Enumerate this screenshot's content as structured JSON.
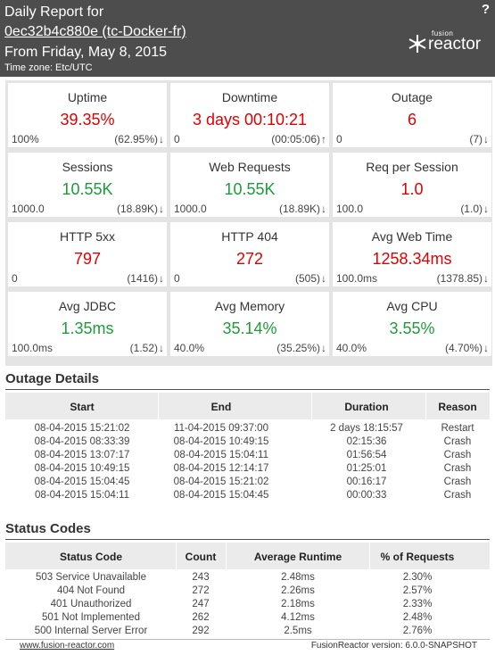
{
  "header": {
    "title_line1": "Daily Report for",
    "title_line2": "0ec32b4c880e (tc-Docker-fr)",
    "title_line3": "From Friday, May 8, 2015",
    "timezone": "Time zone: Etc/UTC",
    "help": "?",
    "logo_top": "fusion",
    "logo_bottom": "reactor"
  },
  "colors": {
    "header_bg": "#4d4d4d",
    "bad": "#e00000",
    "good": "#1e9b3a"
  },
  "cards": [
    {
      "label": "Uptime",
      "value": "39.35%",
      "left": "100%",
      "right": "(62.95%)",
      "arrow": "↓",
      "status": "bad"
    },
    {
      "label": "Downtime",
      "value": "3 days 00:10:21",
      "left": "0",
      "right": "(00:05:06)",
      "arrow": "↑",
      "status": "bad"
    },
    {
      "label": "Outage",
      "value": "6",
      "left": "0",
      "right": "(7)",
      "arrow": "↓",
      "status": "bad"
    },
    {
      "label": "Sessions",
      "value": "10.55K",
      "left": "1000.0",
      "right": "(18.89K)",
      "arrow": "↓",
      "status": "good"
    },
    {
      "label": "Web Requests",
      "value": "10.55K",
      "left": "1000.0",
      "right": "(18.89K)",
      "arrow": "↓",
      "status": "good"
    },
    {
      "label": "Req per Session",
      "value": "1.0",
      "left": "100.0",
      "right": "(1.0)",
      "arrow": "↓",
      "status": "bad"
    },
    {
      "label": "HTTP 5xx",
      "value": "797",
      "left": "0",
      "right": "(1416)",
      "arrow": "↓",
      "status": "bad"
    },
    {
      "label": "HTTP 404",
      "value": "272",
      "left": "0",
      "right": "(505)",
      "arrow": "↓",
      "status": "bad"
    },
    {
      "label": "Avg Web Time",
      "value": "1258.34ms",
      "left": "100.0ms",
      "right": "(1378.85)",
      "arrow": "↓",
      "status": "bad"
    },
    {
      "label": "Avg JDBC",
      "value": "1.35ms",
      "left": "100.0ms",
      "right": "(1.52)",
      "arrow": "↓",
      "status": "good"
    },
    {
      "label": "Avg Memory",
      "value": "35.14%",
      "left": "40.0%",
      "right": "(35.25%)",
      "arrow": "↓",
      "status": "good"
    },
    {
      "label": "Avg CPU",
      "value": "3.55%",
      "left": "40.0%",
      "right": "(4.70%)",
      "arrow": "↓",
      "status": "good"
    }
  ],
  "outage": {
    "title": "Outage Details",
    "headers": [
      "Start",
      "End",
      "Duration",
      "Reason"
    ],
    "rows": [
      [
        "08-04-2015 15:21:02",
        "11-04-2015 09:37:00",
        "2 days 18:15:57",
        "Restart"
      ],
      [
        "08-04-2015 08:33:39",
        "08-04-2015 10:49:15",
        "02:15:36",
        "Crash"
      ],
      [
        "08-04-2015 13:07:17",
        "08-04-2015 15:04:11",
        "01:56:54",
        "Crash"
      ],
      [
        "08-04-2015 10:49:15",
        "08-04-2015 12:14:17",
        "01:25:01",
        "Crash"
      ],
      [
        "08-04-2015 15:04:45",
        "08-04-2015 15:21:02",
        "00:16:17",
        "Crash"
      ],
      [
        "08-04-2015 15:04:11",
        "08-04-2015 15:04:45",
        "00:00:33",
        "Crash"
      ]
    ]
  },
  "status_codes": {
    "title": "Status Codes",
    "headers": [
      "Status Code",
      "Count",
      "Average Runtime",
      "% of Requests"
    ],
    "rows": [
      [
        "503 Service Unavailable",
        "243",
        "2.48ms",
        "2.30%"
      ],
      [
        "404 Not Found",
        "272",
        "2.26ms",
        "2.57%"
      ],
      [
        "401 Unauthorized",
        "247",
        "2.18ms",
        "2.33%"
      ],
      [
        "501 Not Implemented",
        "262",
        "4.12ms",
        "2.48%"
      ],
      [
        "500 Internal Server Error",
        "292",
        "2.5ms",
        "2.76%"
      ]
    ]
  },
  "footer": {
    "link": "www.fusion-reactor.com",
    "version": "FusionReactor version: 6.0.0-SNAPSHOT"
  }
}
